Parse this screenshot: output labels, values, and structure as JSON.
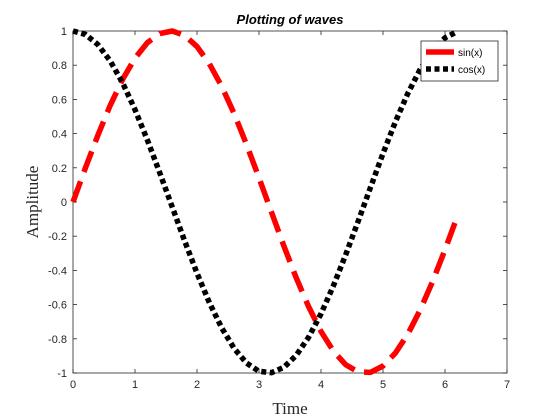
{
  "chart_data": {
    "type": "line",
    "title": "Plotting of waves",
    "xlabel": "Time",
    "ylabel": "Amplitude",
    "xlim": [
      0,
      7
    ],
    "ylim": [
      -1,
      1
    ],
    "xticks": [
      0,
      1,
      2,
      3,
      4,
      5,
      6,
      7
    ],
    "yticks": [
      -1,
      -0.8,
      -0.6,
      -0.4,
      -0.2,
      0,
      0.2,
      0.4,
      0.6,
      0.8,
      1
    ],
    "grid": false,
    "legend": "top-right",
    "series": [
      {
        "name": "sin(x)",
        "color": "#ff0000",
        "style": "dashed",
        "x": [
          0,
          0.2,
          0.4,
          0.6,
          0.8,
          1.0,
          1.2,
          1.4,
          1.6,
          1.8,
          2.0,
          2.2,
          2.4,
          2.6,
          2.8,
          3.0,
          3.2,
          3.4,
          3.6,
          3.8,
          4.0,
          4.2,
          4.4,
          4.6,
          4.8,
          5.0,
          5.2,
          5.4,
          5.6,
          5.8,
          6.0,
          6.2
        ],
        "y": [
          0,
          0.199,
          0.389,
          0.565,
          0.717,
          0.841,
          0.932,
          0.985,
          1.0,
          0.974,
          0.909,
          0.808,
          0.675,
          0.516,
          0.335,
          0.141,
          -0.058,
          -0.256,
          -0.443,
          -0.612,
          -0.757,
          -0.872,
          -0.952,
          -0.994,
          -0.996,
          -0.959,
          -0.883,
          -0.773,
          -0.631,
          -0.465,
          -0.279,
          -0.083
        ]
      },
      {
        "name": "cos(x)",
        "color": "#000000",
        "style": "dotted",
        "x": [
          0,
          0.2,
          0.4,
          0.6,
          0.8,
          1.0,
          1.2,
          1.4,
          1.6,
          1.8,
          2.0,
          2.2,
          2.4,
          2.6,
          2.8,
          3.0,
          3.2,
          3.4,
          3.6,
          3.8,
          4.0,
          4.2,
          4.4,
          4.6,
          4.8,
          5.0,
          5.2,
          5.4,
          5.6,
          5.8,
          6.0,
          6.2
        ],
        "y": [
          1.0,
          0.98,
          0.921,
          0.825,
          0.697,
          0.54,
          0.362,
          0.17,
          -0.029,
          -0.227,
          -0.416,
          -0.589,
          -0.737,
          -0.857,
          -0.942,
          -0.99,
          -0.998,
          -0.967,
          -0.897,
          -0.791,
          -0.654,
          -0.49,
          -0.307,
          -0.112,
          0.087,
          0.284,
          0.469,
          0.635,
          0.776,
          0.886,
          0.96,
          0.997
        ]
      }
    ]
  }
}
